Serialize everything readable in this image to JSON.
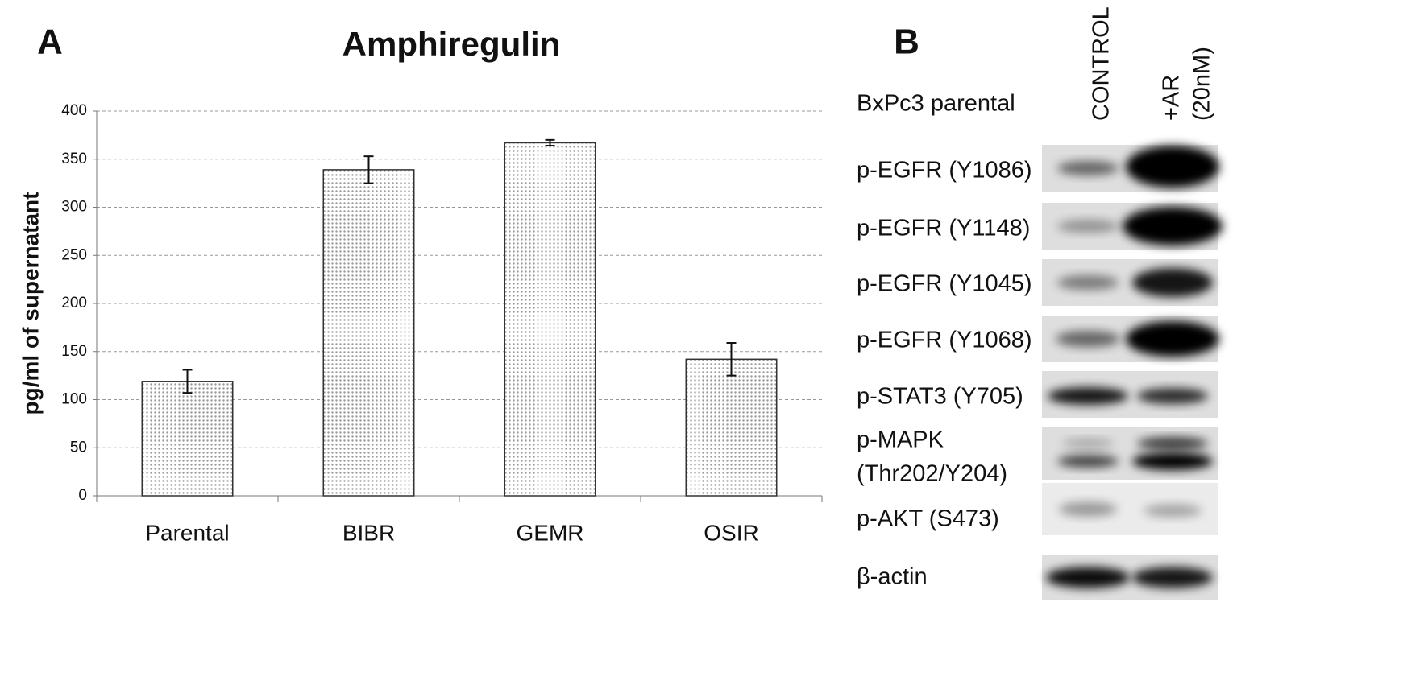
{
  "chart_data": {
    "type": "bar",
    "panel_label": "A",
    "title": "Amphiregulin",
    "y_label": "pg/ml  of supernatant",
    "categories": [
      "Parental",
      "BIBR",
      "GEMR",
      "OSIR"
    ],
    "values": [
      119,
      339,
      367,
      142
    ],
    "errors": [
      12,
      14,
      3,
      17
    ],
    "color": "#9a9a9a",
    "ylim": [
      0,
      400
    ],
    "yticks": [
      0,
      50,
      100,
      150,
      200,
      250,
      300,
      350,
      400
    ],
    "grid": true
  },
  "blot": {
    "panel_label": "B",
    "cell_line": "BxPc3 parental",
    "columns": [
      [
        "CONTROL"
      ],
      [
        "+AR",
        "(20nM)"
      ]
    ],
    "rows": [
      [
        "p-EGFR (Y1086)"
      ],
      [
        "p-EGFR (Y1148)"
      ],
      [
        "p-EGFR (Y1045)"
      ],
      [
        "p-EGFR (Y1068)"
      ],
      [
        "p-STAT3 (Y705)"
      ],
      [
        "p-MAPK",
        "(Thr202/Y204)"
      ],
      [
        "p-AKT (S473)"
      ],
      [
        "β-actin"
      ]
    ]
  }
}
